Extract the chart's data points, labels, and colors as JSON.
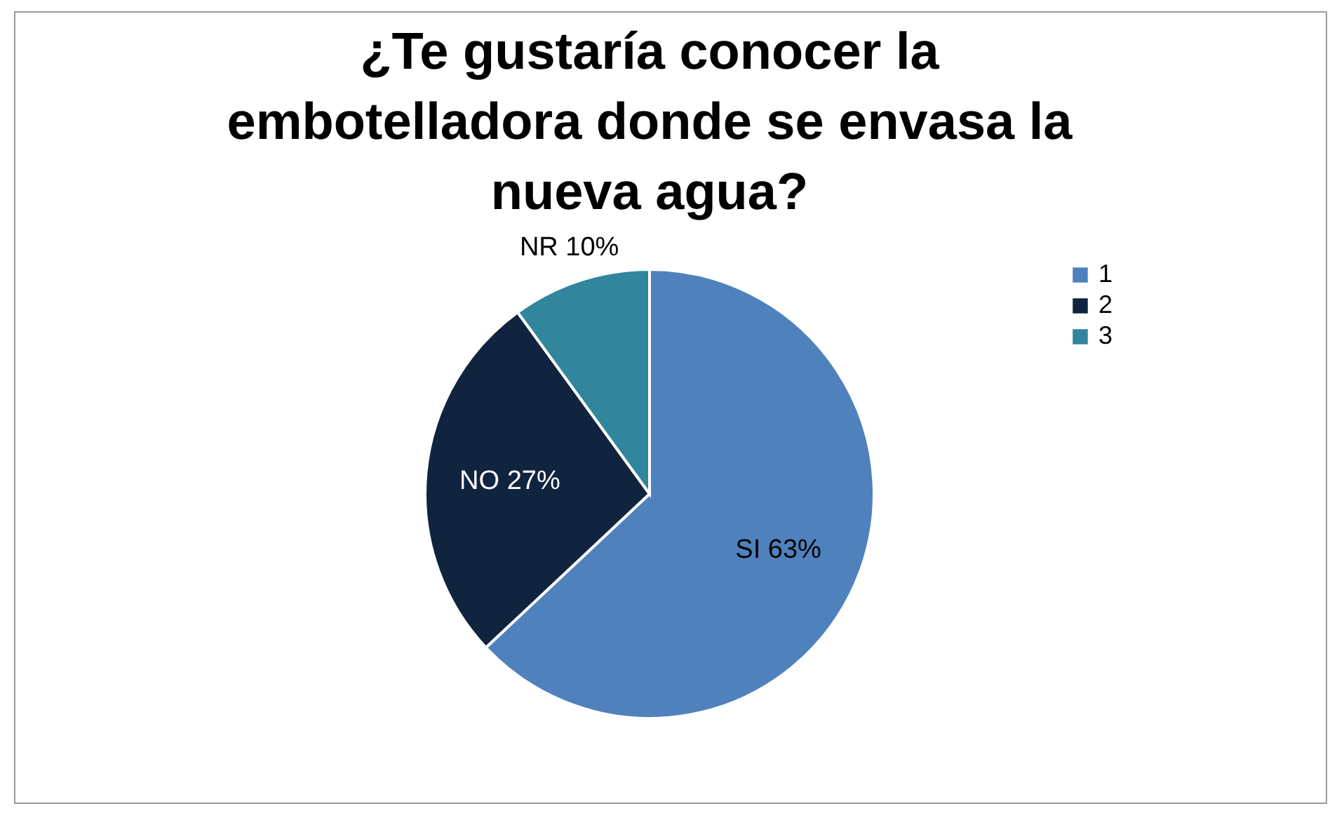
{
  "chart_data": {
    "type": "pie",
    "title": "¿Te gustaría conocer la embotelladora donde se envasa la nueva agua?",
    "categories": [
      "1",
      "2",
      "3"
    ],
    "values": [
      63,
      27,
      10
    ],
    "colors": [
      "#4f81bd",
      "#10243f",
      "#31859c"
    ],
    "value_labels": [
      "SI 63%",
      "NO 27%",
      "NR 10%"
    ],
    "legend": "right"
  }
}
